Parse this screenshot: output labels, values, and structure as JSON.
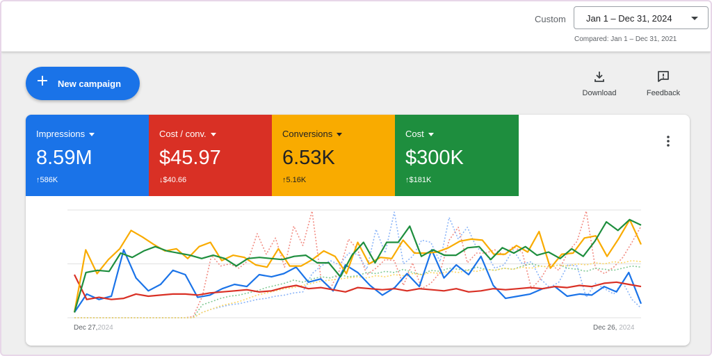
{
  "header": {
    "custom_label": "Custom",
    "date_range": "Jan 1 – Dec 31, 2024",
    "compared_label": "Compared: Jan 1 – Dec 31, 2021"
  },
  "actions": {
    "new_campaign_label": "New campaign",
    "download_label": "Download",
    "feedback_label": "Feedback",
    "icons": {
      "new_campaign": "plus-icon",
      "download": "download-icon",
      "feedback": "feedback-icon",
      "more": "more-vert-icon"
    }
  },
  "metrics": [
    {
      "name": "Impressions",
      "value": "8.59M",
      "delta": "586K",
      "direction": "up",
      "color": "#1a73e8"
    },
    {
      "name": "Cost / conv.",
      "value": "$45.97",
      "delta": "$40.66",
      "direction": "down",
      "color": "#d93025"
    },
    {
      "name": "Conversions",
      "value": "6.53K",
      "delta": "5.16K",
      "direction": "up",
      "color": "#f9ab00"
    },
    {
      "name": "Cost",
      "value": "$300K",
      "delta": "$181K",
      "direction": "up",
      "color": "#1e8e3e"
    }
  ],
  "chart_data": {
    "type": "line",
    "x_start_label": [
      "Dec 27,",
      "2024"
    ],
    "x_end_label": [
      "Dec 26,",
      "2024"
    ],
    "ylim": [
      0,
      100
    ],
    "grid": true,
    "series": [
      {
        "style": "solid",
        "color": "#1a73e8",
        "values": [
          5,
          22,
          17,
          20,
          63,
          37,
          25,
          31,
          44,
          40,
          19,
          21,
          27,
          31,
          29,
          40,
          38,
          41,
          47,
          33,
          36,
          25,
          49,
          42,
          30,
          21,
          28,
          41,
          29,
          63,
          37,
          49,
          40,
          57,
          30,
          18,
          20,
          22,
          27,
          29,
          20,
          22,
          21,
          29,
          24,
          42,
          13
        ]
      },
      {
        "style": "solid",
        "color": "#d93025",
        "values": [
          40,
          17,
          19,
          17,
          18,
          22,
          20,
          21,
          22,
          22,
          21,
          23,
          24,
          25,
          26,
          24,
          25,
          28,
          30,
          27,
          28,
          26,
          24,
          28,
          27,
          26,
          27,
          25,
          27,
          26,
          25,
          27,
          24,
          25,
          27,
          26,
          27,
          28,
          27,
          29,
          28,
          30,
          29,
          32,
          33,
          31,
          29
        ]
      },
      {
        "style": "solid",
        "color": "#f9ab00",
        "values": [
          5,
          63,
          41,
          54,
          64,
          81,
          75,
          68,
          62,
          64,
          55,
          66,
          70,
          53,
          58,
          56,
          49,
          47,
          64,
          48,
          48,
          54,
          62,
          57,
          41,
          70,
          50,
          56,
          55,
          72,
          60,
          60,
          61,
          65,
          71,
          73,
          72,
          59,
          59,
          67,
          61,
          80,
          46,
          59,
          60,
          74,
          76,
          57,
          73,
          91,
          68
        ]
      },
      {
        "style": "solid",
        "color": "#1e8e3e",
        "values": [
          5,
          42,
          44,
          43,
          60,
          56,
          62,
          66,
          62,
          60,
          58,
          55,
          58,
          55,
          48,
          55,
          56,
          55,
          54,
          57,
          58,
          51,
          51,
          38,
          58,
          70,
          51,
          70,
          70,
          85,
          57,
          63,
          58,
          58,
          65,
          66,
          54,
          65,
          60,
          66,
          58,
          61,
          55,
          64,
          57,
          71,
          89,
          81,
          91,
          86
        ]
      },
      {
        "style": "dotted",
        "color": "#f28b82",
        "values": [
          0,
          0,
          0,
          0,
          0,
          0,
          0,
          0,
          0,
          0,
          0,
          0,
          0,
          1,
          20,
          58,
          48,
          50,
          46,
          53,
          78,
          59,
          74,
          47,
          85,
          67,
          99,
          35,
          27,
          44,
          73,
          63,
          40,
          46,
          54,
          53,
          30,
          51,
          27,
          32,
          42,
          72,
          84,
          51,
          60,
          60,
          63,
          58,
          66,
          61,
          27,
          36,
          50,
          44,
          61,
          71,
          99,
          46,
          41,
          47,
          56,
          70,
          85
        ]
      },
      {
        "style": "dotted",
        "color": "#8ab4f8",
        "values": [
          0,
          0,
          0,
          0,
          0,
          0,
          0,
          0,
          0,
          0,
          0,
          0,
          0,
          0,
          5,
          8,
          10,
          12,
          13,
          15,
          17,
          18,
          20,
          21,
          23,
          24,
          41,
          48,
          53,
          49,
          60,
          59,
          45,
          82,
          60,
          98,
          50,
          57,
          72,
          70,
          52,
          93,
          73,
          84,
          65,
          60,
          46,
          49,
          63,
          50,
          52,
          36,
          28,
          33,
          49,
          48,
          19,
          32,
          27,
          22,
          33,
          17,
          9
        ]
      },
      {
        "style": "dotted",
        "color": "#81c995",
        "values": [
          0,
          0,
          0,
          0,
          0,
          0,
          0,
          0,
          0,
          0,
          0,
          0,
          0,
          0,
          12,
          15,
          18,
          20,
          21,
          23,
          25,
          28,
          30,
          32,
          35,
          33,
          36,
          38,
          37,
          40,
          38,
          39,
          42,
          41,
          43,
          42,
          45,
          42,
          40,
          44,
          43,
          46,
          45,
          44,
          47,
          45,
          44,
          46,
          45,
          48,
          50,
          48,
          47,
          49,
          46,
          45,
          43,
          46,
          45,
          44,
          46,
          48,
          47
        ]
      },
      {
        "style": "dotted",
        "color": "#fdd663",
        "values": [
          0,
          0,
          0,
          0,
          0,
          0,
          0,
          0,
          0,
          0,
          0,
          0,
          0,
          0,
          5,
          8,
          11,
          13,
          15,
          18,
          21,
          23,
          25,
          27,
          28,
          30,
          32,
          34,
          35,
          36,
          37,
          38,
          37,
          39,
          38,
          40,
          39,
          41,
          40,
          42,
          41,
          43,
          42,
          44,
          43,
          45,
          44,
          46,
          45,
          47,
          46,
          48,
          47,
          49,
          48,
          50,
          49,
          51,
          50,
          52,
          51,
          53,
          52
        ]
      }
    ]
  }
}
